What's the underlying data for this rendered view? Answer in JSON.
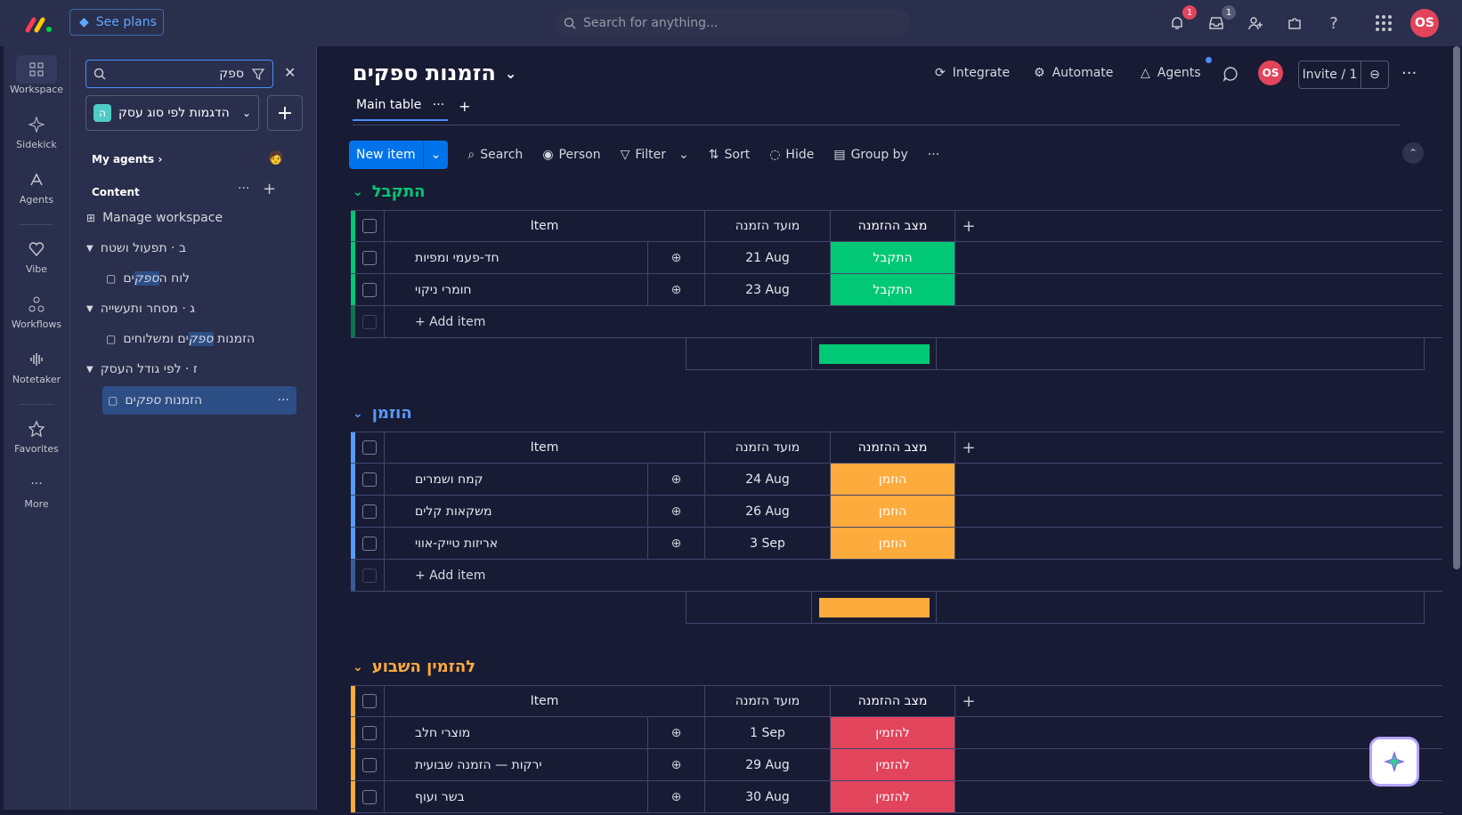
{
  "topbar": {
    "see_plans": "See plans",
    "search_placeholder": "Search for anything...",
    "notifications_count": "1",
    "inbox_count": "1",
    "avatar": "OS"
  },
  "rail": {
    "items": [
      {
        "label": "Workspace",
        "icon": "grid-icon"
      },
      {
        "label": "Sidekick",
        "icon": "sparkle-icon"
      },
      {
        "label": "Agents",
        "icon": "agents-icon"
      },
      {
        "label": "Vibe",
        "icon": "heart-icon"
      },
      {
        "label": "Workflows",
        "icon": "workflows-icon"
      },
      {
        "label": "Notetaker",
        "icon": "waveform-icon"
      },
      {
        "label": "Favorites",
        "icon": "star-icon"
      },
      {
        "label": "More",
        "icon": "more-icon"
      }
    ]
  },
  "panel": {
    "search_value": "ספק",
    "workspace_name": "הדגמות לפי סוג עסק",
    "workspace_initial": "ה",
    "my_agents": "My agents",
    "content": "Content",
    "manage": "Manage workspace",
    "tree": {
      "f1": "ב · תפעול ושטח",
      "f1_board_pre": "לוח ה",
      "f1_board_hl": "ספק",
      "f1_board_post": "ים",
      "f2": "ג · מסחר ותעשייה",
      "f2_board_pre": "הזמנות ",
      "f2_board_hl": "ספק",
      "f2_board_post": "ים ומשלוחים",
      "f3": "ז · לפי גודל העסק",
      "f3_board_pre": "הזמנות ",
      "f3_board_hl": "ספק",
      "f3_board_post": "ים"
    }
  },
  "board": {
    "title": "הזמנות ספקים",
    "integrate": "Integrate",
    "automate": "Automate",
    "agents": "Agents",
    "avatar": "OS",
    "invite": "Invite / 1",
    "tab_main": "Main table",
    "new_item": "New item",
    "search": "Search",
    "person": "Person",
    "filter": "Filter",
    "sort": "Sort",
    "hide": "Hide",
    "group_by": "Group by",
    "col_item": "Item",
    "col_date": "מועד הזמנה",
    "col_status": "מצב ההזמנה",
    "add_item": "+ Add item"
  },
  "colors": {
    "received": "#00c875",
    "ordered": "#fdab3d",
    "to_order": "#e2445c",
    "accent": "#0073ea"
  },
  "groups": [
    {
      "title": "התקבל",
      "color": "#00c875",
      "rows": [
        {
          "item": "חד-פעמי ומפיות",
          "date": "21 Aug",
          "status": "התקבל"
        },
        {
          "item": "חומרי ניקוי",
          "date": "23 Aug",
          "status": "התקבל"
        }
      ]
    },
    {
      "title": "הוזמן",
      "color": "#579bfc",
      "rows": [
        {
          "item": "קמח ושמרים",
          "date": "24 Aug",
          "status": "הוזמן"
        },
        {
          "item": "משקאות קלים",
          "date": "26 Aug",
          "status": "הוזמן"
        },
        {
          "item": "אריזות טייק-אווי",
          "date": "3 Sep",
          "status": "הוזמן"
        }
      ]
    },
    {
      "title": "להזמין השבוע",
      "color": "#fdab3d",
      "rows": [
        {
          "item": "מוצרי חלב",
          "date": "1 Sep",
          "status": "להזמין"
        },
        {
          "item": "ירקות — הזמנה שבועית",
          "date": "29 Aug",
          "status": "להזמין"
        },
        {
          "item": "בשר ועוף",
          "date": "30 Aug",
          "status": "להזמין"
        }
      ]
    }
  ]
}
